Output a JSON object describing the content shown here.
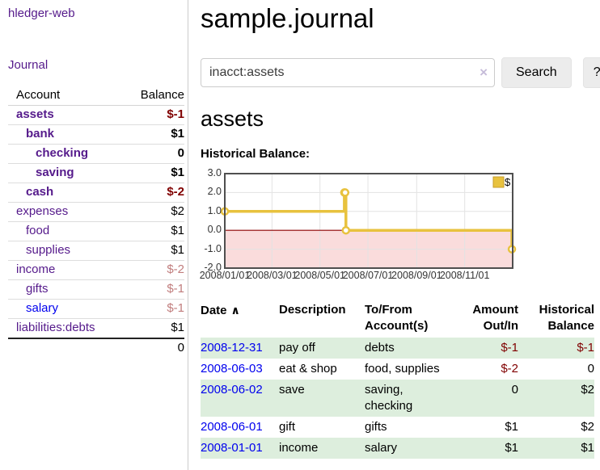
{
  "sidebar": {
    "brand": "hledger-web",
    "journal_label": "Journal",
    "accounts_table": {
      "headers": [
        "Account",
        "Balance"
      ],
      "rows": [
        {
          "account": "assets",
          "balance": "$-1"
        },
        {
          "account": "bank",
          "balance": "$1"
        },
        {
          "account": "checking",
          "balance": "0"
        },
        {
          "account": "saving",
          "balance": "$1"
        },
        {
          "account": "cash",
          "balance": "$-2"
        },
        {
          "account": "expenses",
          "balance": "$2"
        },
        {
          "account": "food",
          "balance": "$1"
        },
        {
          "account": "supplies",
          "balance": "$1"
        },
        {
          "account": "income",
          "balance": "$-2"
        },
        {
          "account": "gifts",
          "balance": "$-1"
        },
        {
          "account": "salary",
          "balance": "$-1"
        },
        {
          "account": "liabilities:debts",
          "balance": "$1"
        }
      ],
      "total": "0"
    }
  },
  "main": {
    "title": "sample.journal",
    "search": {
      "value": "inacct:assets",
      "clear_icon": "×",
      "button_label": "Search",
      "help_label": "?"
    },
    "section_title": "assets",
    "chart_label": "Historical Balance:",
    "table": {
      "sort_icon": "∧",
      "headers": {
        "date": "Date",
        "description": "Description",
        "accounts": "To/From Account(s)",
        "amount": "Amount Out/In",
        "balance": "Historical Balance"
      },
      "rows": [
        {
          "date": "2008-12-31",
          "description": "pay off",
          "accounts": "debts",
          "amount": "$-1",
          "balance": "$-1"
        },
        {
          "date": "2008-06-03",
          "description": "eat & shop",
          "accounts": "food, supplies",
          "amount": "$-2",
          "balance": "0"
        },
        {
          "date": "2008-06-02",
          "description": "save",
          "accounts": "saving, checking",
          "amount": "0",
          "balance": "$2"
        },
        {
          "date": "2008-06-01",
          "description": "gift",
          "accounts": "gifts",
          "amount": "$1",
          "balance": "$2"
        },
        {
          "date": "2008-01-01",
          "description": "income",
          "accounts": "salary",
          "amount": "$1",
          "balance": "$1"
        }
      ]
    }
  },
  "chart_data": {
    "type": "line",
    "step": true,
    "title": "Historical Balance:",
    "series": [
      {
        "name": "$",
        "color": "#e8c23e",
        "points": [
          {
            "date": "2008-01-01",
            "value": 1
          },
          {
            "date": "2008-06-01",
            "value": 2
          },
          {
            "date": "2008-06-02",
            "value": 2
          },
          {
            "date": "2008-06-03",
            "value": 0
          },
          {
            "date": "2008-12-31",
            "value": -1
          }
        ]
      }
    ],
    "x_domain": [
      "2008-01-01",
      "2009-01-01"
    ],
    "x_ticks": [
      "2008/01/01",
      "2008/03/01",
      "2008/05/01",
      "2008/07/01",
      "2008/09/01",
      "2008/11/01"
    ],
    "y_ticks": [
      3.0,
      2.0,
      1.0,
      0.0,
      -1.0,
      -2.0
    ],
    "ylim": [
      -2,
      3
    ],
    "grid": true,
    "legend": {
      "label": "$",
      "position": "top-right"
    },
    "colors": {
      "negative_region": "#fadcdc",
      "zero_line": "#8b0000",
      "grid_line": "#e3e3e3",
      "plot_border": "#4f4f4f",
      "marker_fill": "#ffffff",
      "legend_border": "#c79c2a"
    }
  }
}
